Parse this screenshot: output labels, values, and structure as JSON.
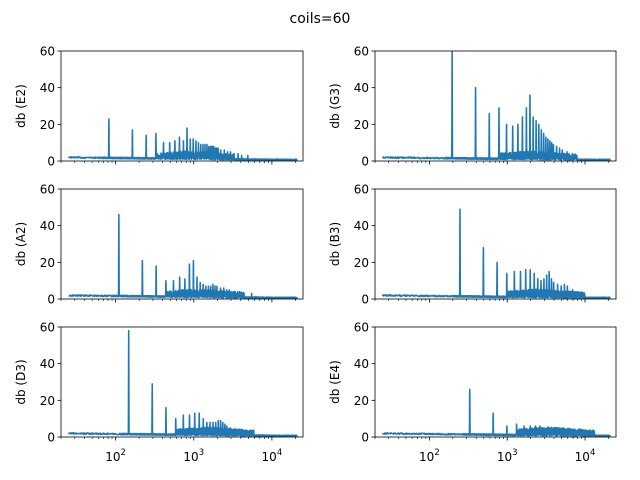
{
  "figure": {
    "suptitle": "coils=60"
  },
  "chart_data": [
    {
      "type": "line",
      "ylabel": "db (E2)",
      "color": "#1f77b4",
      "xscale": "log",
      "xlim": [
        20,
        25000
      ],
      "ylim": [
        0,
        60
      ],
      "yticks": [
        0,
        20,
        40,
        60
      ],
      "xticks": [],
      "grid": false,
      "fundamental_hz": 82,
      "peaks": [
        [
          82,
          23
        ],
        [
          164,
          17
        ],
        [
          246,
          14
        ],
        [
          328,
          15
        ],
        [
          410,
          10
        ],
        [
          492,
          10
        ],
        [
          574,
          11
        ],
        [
          656,
          13
        ],
        [
          738,
          11
        ],
        [
          820,
          18
        ],
        [
          902,
          12
        ],
        [
          984,
          12
        ],
        [
          1066,
          11
        ],
        [
          1148,
          10
        ],
        [
          1230,
          9
        ],
        [
          1312,
          9
        ],
        [
          1394,
          9
        ],
        [
          1476,
          9
        ],
        [
          1558,
          8
        ],
        [
          1640,
          8
        ],
        [
          1722,
          8
        ],
        [
          1804,
          8
        ],
        [
          1886,
          7
        ],
        [
          1968,
          7
        ],
        [
          2050,
          7
        ],
        [
          2214,
          6
        ],
        [
          2460,
          6
        ],
        [
          2706,
          5
        ],
        [
          2952,
          5
        ],
        [
          3280,
          4
        ],
        [
          3690,
          4
        ],
        [
          4100,
          3
        ],
        [
          4920,
          3
        ]
      ]
    },
    {
      "type": "line",
      "ylabel": "db (G3)",
      "color": "#1f77b4",
      "xscale": "log",
      "xlim": [
        20,
        25000
      ],
      "ylim": [
        0,
        60
      ],
      "yticks": [
        0,
        20,
        40,
        60
      ],
      "xticks": [],
      "grid": false,
      "fundamental_hz": 196,
      "peaks": [
        [
          196,
          60
        ],
        [
          392,
          40
        ],
        [
          588,
          26
        ],
        [
          784,
          29
        ],
        [
          980,
          20
        ],
        [
          1176,
          19
        ],
        [
          1372,
          20
        ],
        [
          1568,
          24
        ],
        [
          1764,
          29
        ],
        [
          1960,
          36
        ],
        [
          2156,
          24
        ],
        [
          2352,
          22
        ],
        [
          2548,
          20
        ],
        [
          2744,
          17
        ],
        [
          2940,
          15
        ],
        [
          3136,
          13
        ],
        [
          3332,
          12
        ],
        [
          3528,
          11
        ],
        [
          3724,
          10
        ],
        [
          3920,
          9
        ],
        [
          4312,
          8
        ],
        [
          4704,
          7
        ],
        [
          5096,
          6
        ],
        [
          5880,
          5
        ],
        [
          6860,
          4
        ],
        [
          7840,
          3
        ]
      ]
    },
    {
      "type": "line",
      "ylabel": "db (A2)",
      "color": "#1f77b4",
      "xscale": "log",
      "xlim": [
        20,
        25000
      ],
      "ylim": [
        0,
        60
      ],
      "yticks": [
        0,
        20,
        40,
        60
      ],
      "xticks": [],
      "grid": false,
      "fundamental_hz": 110,
      "peaks": [
        [
          110,
          46
        ],
        [
          220,
          21
        ],
        [
          330,
          18
        ],
        [
          440,
          10
        ],
        [
          550,
          10
        ],
        [
          660,
          12
        ],
        [
          770,
          11
        ],
        [
          880,
          19
        ],
        [
          990,
          21
        ],
        [
          1100,
          12
        ],
        [
          1210,
          9
        ],
        [
          1320,
          8
        ],
        [
          1430,
          7
        ],
        [
          1540,
          7
        ],
        [
          1650,
          7
        ],
        [
          1760,
          8
        ],
        [
          1870,
          7
        ],
        [
          1980,
          7
        ],
        [
          2200,
          6
        ],
        [
          2420,
          6
        ],
        [
          2640,
          5
        ],
        [
          2860,
          5
        ],
        [
          3300,
          4
        ],
        [
          3850,
          4
        ],
        [
          4400,
          3
        ],
        [
          5500,
          3
        ]
      ]
    },
    {
      "type": "line",
      "ylabel": "db (B3)",
      "color": "#1f77b4",
      "xscale": "log",
      "xlim": [
        20,
        25000
      ],
      "ylim": [
        0,
        60
      ],
      "yticks": [
        0,
        20,
        40,
        60
      ],
      "xticks": [],
      "grid": false,
      "fundamental_hz": 247,
      "peaks": [
        [
          247,
          49
        ],
        [
          494,
          28
        ],
        [
          741,
          20
        ],
        [
          988,
          14
        ],
        [
          1235,
          15
        ],
        [
          1482,
          15
        ],
        [
          1729,
          16
        ],
        [
          1976,
          16
        ],
        [
          2223,
          14
        ],
        [
          2470,
          11
        ],
        [
          2717,
          10
        ],
        [
          2964,
          11
        ],
        [
          3211,
          13
        ],
        [
          3458,
          15
        ],
        [
          3705,
          11
        ],
        [
          3952,
          9
        ],
        [
          4446,
          8
        ],
        [
          4940,
          7
        ],
        [
          5434,
          8
        ],
        [
          5928,
          7
        ],
        [
          6916,
          5
        ],
        [
          7904,
          4
        ],
        [
          9880,
          3
        ]
      ]
    },
    {
      "type": "line",
      "ylabel": "db (D3)",
      "color": "#1f77b4",
      "xscale": "log",
      "xlim": [
        20,
        25000
      ],
      "ylim": [
        0,
        60
      ],
      "yticks": [
        0,
        20,
        40,
        60
      ],
      "xticks": [
        100,
        1000,
        10000
      ],
      "grid": false,
      "fundamental_hz": 147,
      "peaks": [
        [
          147,
          58
        ],
        [
          294,
          29
        ],
        [
          441,
          16
        ],
        [
          588,
          10
        ],
        [
          735,
          12
        ],
        [
          882,
          12
        ],
        [
          1029,
          13
        ],
        [
          1176,
          13
        ],
        [
          1323,
          10
        ],
        [
          1470,
          8
        ],
        [
          1617,
          8
        ],
        [
          1764,
          8
        ],
        [
          1911,
          8
        ],
        [
          2058,
          9
        ],
        [
          2205,
          9
        ],
        [
          2352,
          8
        ],
        [
          2499,
          7
        ],
        [
          2646,
          6
        ],
        [
          2940,
          5
        ],
        [
          3234,
          4
        ],
        [
          3675,
          3
        ],
        [
          4410,
          3
        ]
      ]
    },
    {
      "type": "line",
      "ylabel": "db (E4)",
      "color": "#1f77b4",
      "xscale": "log",
      "xlim": [
        20,
        25000
      ],
      "ylim": [
        0,
        60
      ],
      "yticks": [
        0,
        20,
        40,
        60
      ],
      "xticks": [
        100,
        1000,
        10000
      ],
      "grid": false,
      "fundamental_hz": 330,
      "peaks": [
        [
          330,
          26
        ],
        [
          660,
          13
        ],
        [
          990,
          6
        ],
        [
          1320,
          7
        ],
        [
          1650,
          6
        ],
        [
          1980,
          6
        ],
        [
          2310,
          6
        ],
        [
          2640,
          6
        ],
        [
          2970,
          5
        ],
        [
          3300,
          3
        ],
        [
          3630,
          4
        ],
        [
          3960,
          3
        ],
        [
          4620,
          3
        ],
        [
          5280,
          2
        ],
        [
          5940,
          2
        ]
      ]
    }
  ]
}
